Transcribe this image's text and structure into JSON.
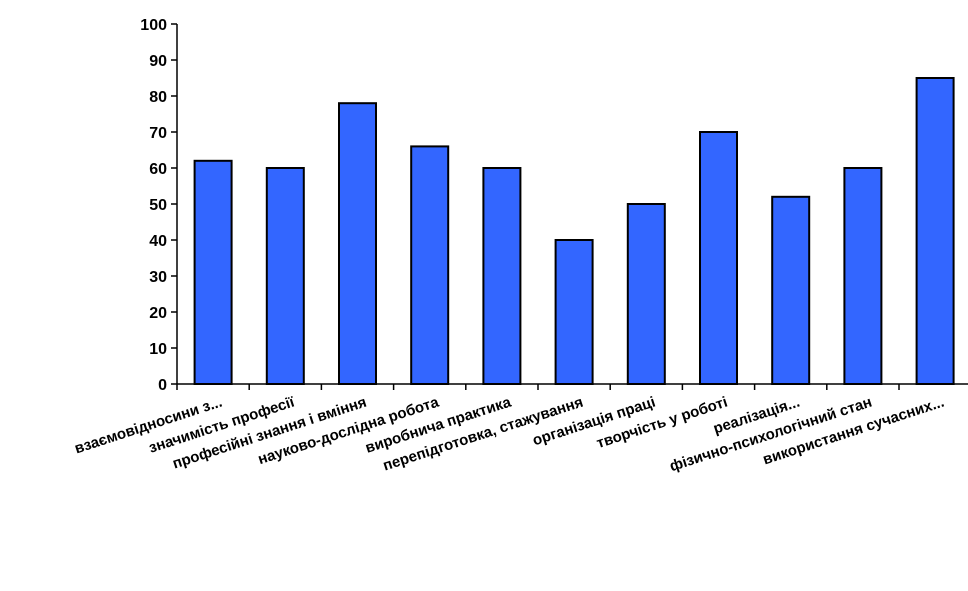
{
  "chart_data": {
    "type": "bar",
    "categories": [
      "взаємовідносини з...",
      "значимість професії",
      "професійні знання і вміння",
      "науково-дослідна робота",
      "виробнича практика",
      "перепідготовка, стажування",
      "організація праці",
      "творчість у роботі",
      "реалізація...",
      "фізично-психологічний стан",
      "використання сучасних..."
    ],
    "values": [
      62,
      60,
      78,
      66,
      60,
      40,
      50,
      70,
      52,
      60,
      85
    ],
    "ylim": [
      0,
      100
    ],
    "yticks": [
      0,
      10,
      20,
      30,
      40,
      50,
      60,
      70,
      80,
      90,
      100
    ],
    "xlabel": "",
    "ylabel": "",
    "title": "",
    "grid": false,
    "bar_color": "#3366ff",
    "bar_edge_color": "#000000"
  }
}
